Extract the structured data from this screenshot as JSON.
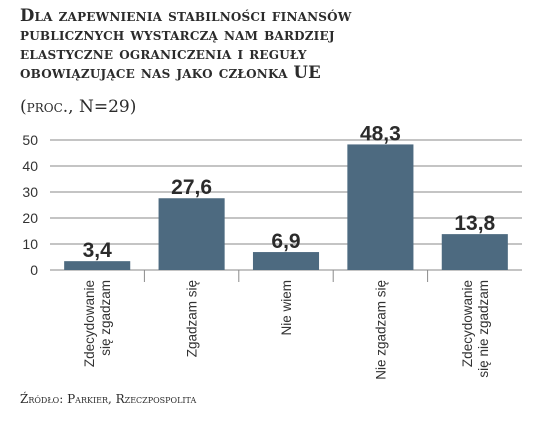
{
  "title_lines": [
    "Dla zapewnienia stabilności finansów",
    "publicznych wystarczą nam bardziej",
    "elastyczne ograniczenia i reguły",
    "obowiązujące nas jako członka UE"
  ],
  "subtitle": "(proc., N=29)",
  "source": "Źródło: Parkier, Rzeczpospolita",
  "chart_data": {
    "type": "bar",
    "categories": [
      [
        "Zdecydowanie",
        "się zgadzam"
      ],
      [
        "Zgadzam się"
      ],
      [
        "Nie wiem"
      ],
      [
        "Nie zgadzam się"
      ],
      [
        "Zdecydowanie",
        "się nie zgadzam"
      ]
    ],
    "values": [
      3.4,
      27.6,
      6.9,
      48.3,
      13.8
    ],
    "value_labels": [
      "3,4",
      "27,6",
      "6,9",
      "48,3",
      "13,8"
    ],
    "ylim": [
      0,
      50
    ],
    "yticks": [
      0,
      10,
      20,
      30,
      40,
      50
    ],
    "grid": true,
    "bar_color": "#4d6a80"
  }
}
